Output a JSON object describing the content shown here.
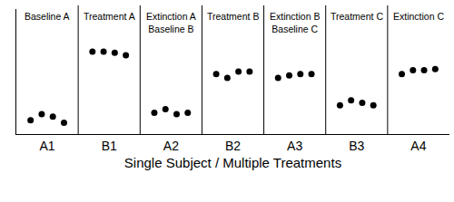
{
  "chart_data": {
    "type": "scatter",
    "xlabel": "Single Subject / Multiple Treatments",
    "phases": [
      {
        "label": [
          "Baseline A"
        ],
        "category": "A1",
        "values": [
          11,
          16,
          14,
          9
        ]
      },
      {
        "label": [
          "Treatment A"
        ],
        "category": "B1",
        "values": [
          66,
          66,
          65,
          63
        ]
      },
      {
        "label": [
          "Extinction A",
          "Baseline B"
        ],
        "category": "A2",
        "values": [
          17,
          20,
          16,
          17
        ]
      },
      {
        "label": [
          "Treatment B"
        ],
        "category": "B2",
        "values": [
          48,
          45,
          50,
          50
        ]
      },
      {
        "label": [
          "Extinction B",
          "Baseline C"
        ],
        "category": "A3",
        "values": [
          45,
          47,
          48,
          48
        ]
      },
      {
        "label": [
          "Treatment C"
        ],
        "category": "B3",
        "values": [
          23,
          27,
          25,
          23
        ]
      },
      {
        "label": [
          "Extinction C"
        ],
        "category": "A4",
        "values": [
          48,
          51,
          51,
          52
        ]
      }
    ],
    "ylim": [
      0,
      100
    ],
    "tick_labels": "x",
    "grid": false,
    "color": "#000000",
    "marker": "circle"
  }
}
